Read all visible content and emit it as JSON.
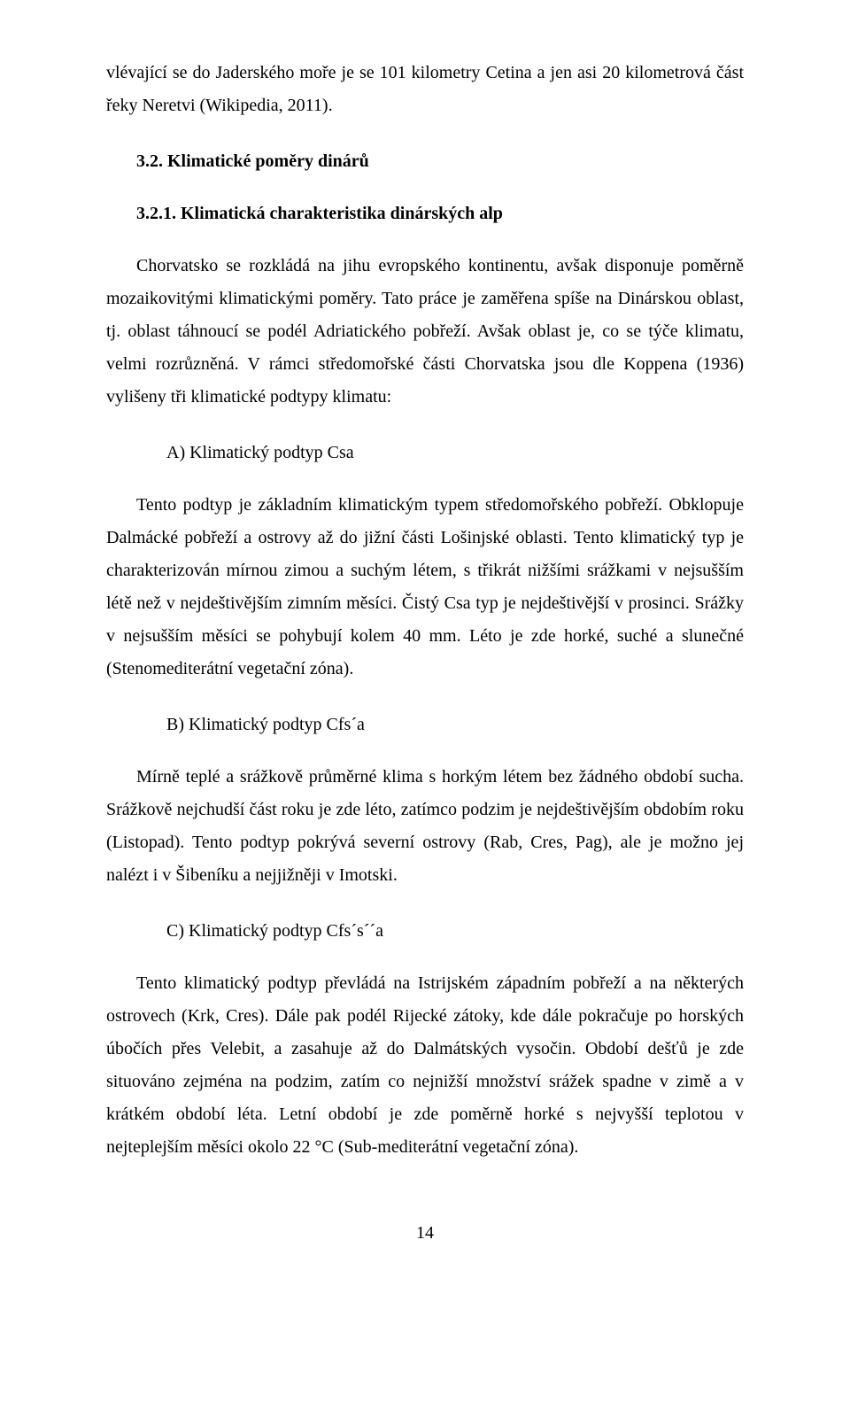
{
  "p_lead": "vlévající se do Jaderského moře je se 101 kilometry Cetina a jen asi 20 kilometrová část řeky Neretvi (Wikipedia, 2011).",
  "h_3_2": "3.2. Klimatické poměry dinárů",
  "h_3_2_1": "3.2.1. Klimatická charakteristika dinárských alp",
  "p_intro": "Chorvatsko se rozkládá na jihu evropského kontinentu, avšak disponuje poměrně mozaikovitými klimatickými poměry. Tato práce je zaměřena spíše na Dinárskou oblast, tj. oblast táhnoucí se podél Adriatického pobřeží. Avšak oblast je, co se týče klimatu, velmi rozrůzněná. V rámci středomořské části Chorvatska jsou dle Koppena (1936) vylišeny tři klimatické podtypy klimatu:",
  "label_a": "A) Klimatický podtyp Csa",
  "p_a": "Tento podtyp je základním klimatickým typem středomořského pobřeží. Obklopuje Dalmácké pobřeží a ostrovy až do jižní části Lošinjské oblasti. Tento klimatický typ je charakterizován mírnou zimou a suchým létem, s třikrát nižšími srážkami v nejsušším létě než v nejdeštivějším zimním měsíci. Čistý Csa typ je nejdeštivější v prosinci. Srážky v nejsušším měsíci se pohybují kolem 40 mm. Léto je zde horké, suché a slunečné (Stenomediterátní vegetační zóna).",
  "label_b": "B) Klimatický podtyp Cfs´a",
  "p_b": "Mírně teplé a srážkově průměrné klima s horkým létem bez žádného období sucha. Srážkově nejchudší část roku je zde léto, zatímco podzim je nejdeštivějším obdobím roku (Listopad). Tento podtyp pokrývá severní ostrovy (Rab, Cres, Pag), ale je možno jej nalézt i v Šibeníku a nejjižněji v Imotski.",
  "label_c": "C) Klimatický podtyp Cfs´s´´a",
  "p_c": "Tento klimatický podtyp převládá na Istrijském západním pobřeží a na některých ostrovech (Krk, Cres). Dále pak podél Rijecké zátoky, kde dále pokračuje po horských úbočích přes Velebit, a zasahuje až do Dalmátských vysočin. Období dešťů je zde situováno zejména na podzim, zatím co nejnižší množství srážek spadne v zimě a v krátkém období léta. Letní období je zde poměrně horké s nejvyšší teplotou v nejteplejším měsíci okolo 22 °C (Sub-mediterátní vegetační zóna).",
  "page_number": "14"
}
